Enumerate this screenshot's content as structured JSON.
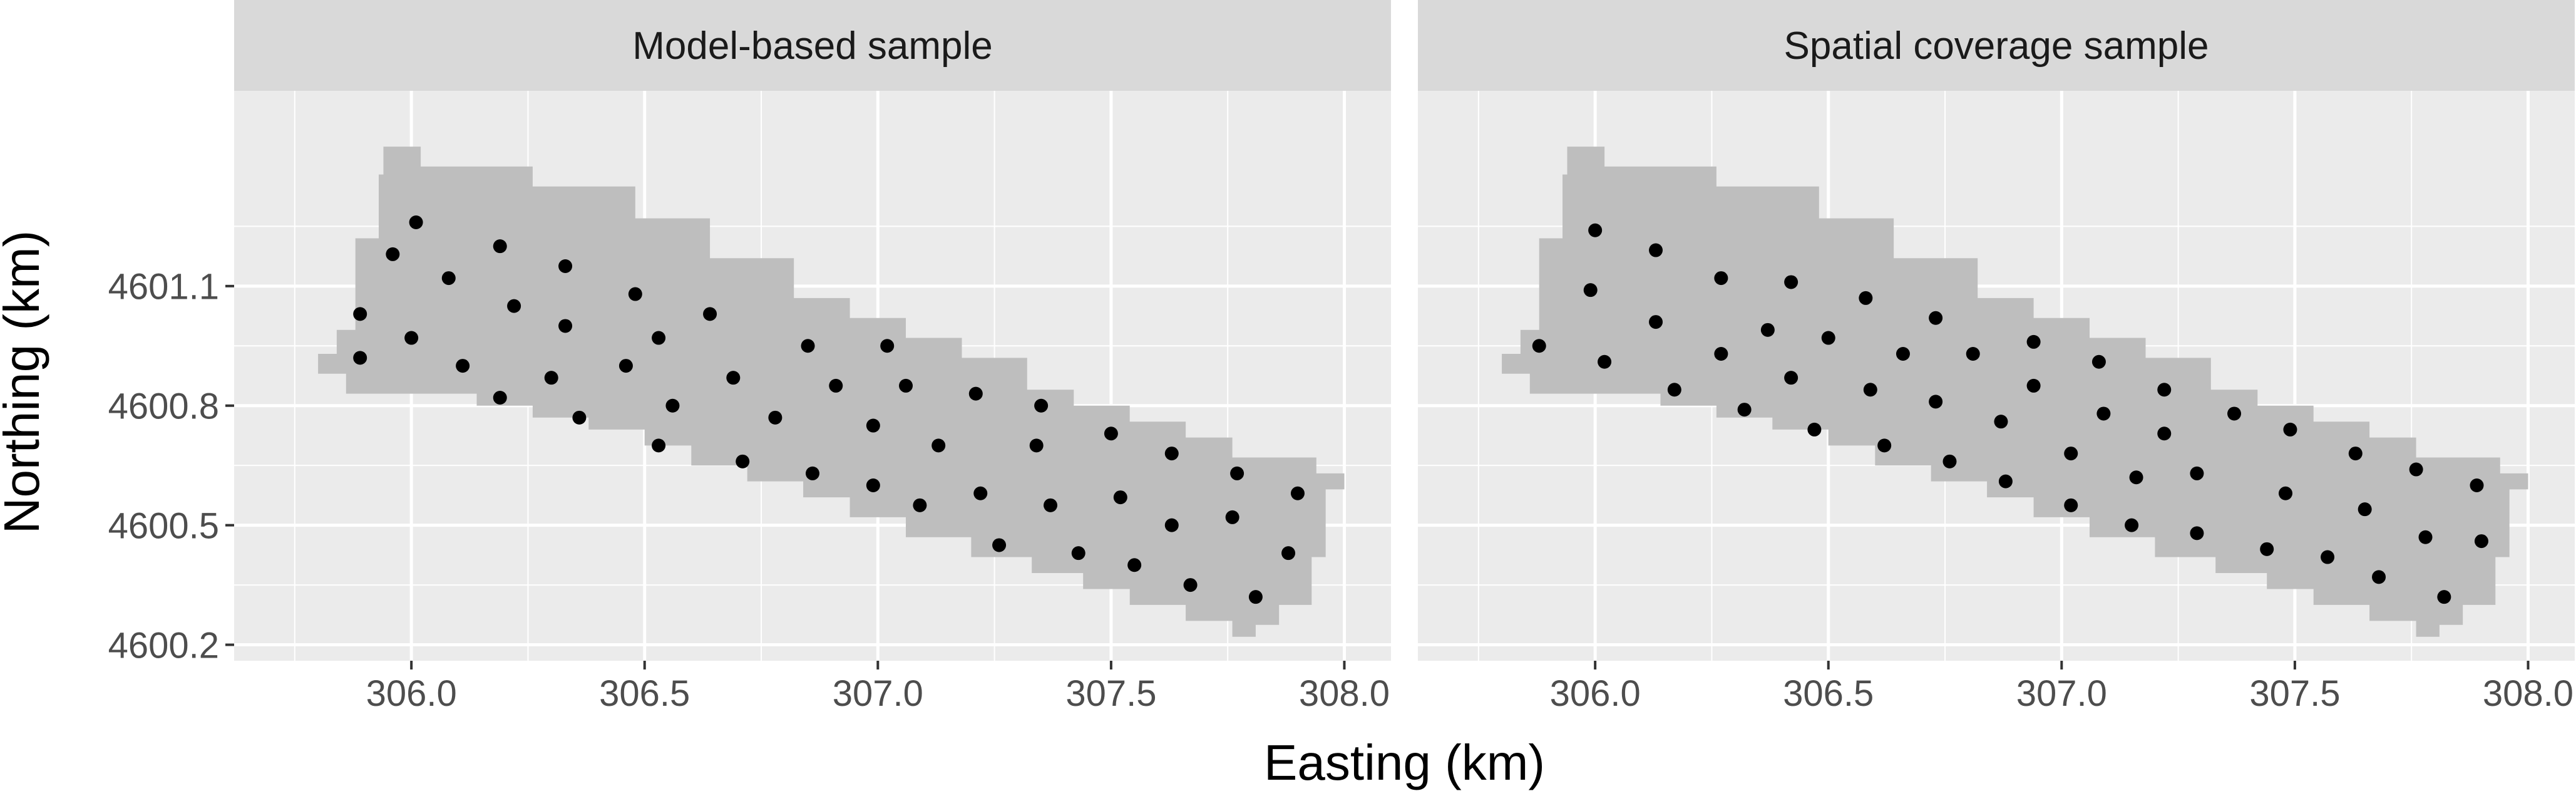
{
  "chart_data": {
    "type": "scatter",
    "xlabel": "Easting (km)",
    "ylabel": "Northing (km)",
    "xlim": [
      305.62,
      308.1
    ],
    "ylim": [
      4600.16,
      4601.59
    ],
    "x_ticks": [
      306.0,
      306.5,
      307.0,
      307.5,
      308.0
    ],
    "y_ticks": [
      4600.2,
      4600.5,
      4600.8,
      4601.1
    ],
    "grid": true,
    "colors": {
      "panel_background": "#ebebeb",
      "strip_background": "#d9d9d9",
      "grid_major": "#ffffff",
      "study_area": "#bebebe",
      "points": "#000000",
      "axis_text": "#4d4d4d"
    },
    "study_area_outline": [
      [
        305.94,
        4601.45
      ],
      [
        306.02,
        4601.45
      ],
      [
        306.02,
        4601.4
      ],
      [
        306.26,
        4601.4
      ],
      [
        306.26,
        4601.35
      ],
      [
        306.48,
        4601.35
      ],
      [
        306.48,
        4601.27
      ],
      [
        306.64,
        4601.27
      ],
      [
        306.64,
        4601.17
      ],
      [
        306.82,
        4601.17
      ],
      [
        306.82,
        4601.07
      ],
      [
        306.94,
        4601.07
      ],
      [
        306.94,
        4601.02
      ],
      [
        307.06,
        4601.02
      ],
      [
        307.06,
        4600.97
      ],
      [
        307.18,
        4600.97
      ],
      [
        307.18,
        4600.92
      ],
      [
        307.32,
        4600.92
      ],
      [
        307.32,
        4600.84
      ],
      [
        307.42,
        4600.84
      ],
      [
        307.42,
        4600.8
      ],
      [
        307.54,
        4600.8
      ],
      [
        307.54,
        4600.76
      ],
      [
        307.66,
        4600.76
      ],
      [
        307.66,
        4600.72
      ],
      [
        307.76,
        4600.72
      ],
      [
        307.76,
        4600.67
      ],
      [
        307.94,
        4600.67
      ],
      [
        307.94,
        4600.63
      ],
      [
        308.0,
        4600.63
      ],
      [
        308.0,
        4600.59
      ],
      [
        307.96,
        4600.59
      ],
      [
        307.96,
        4600.42
      ],
      [
        307.93,
        4600.42
      ],
      [
        307.93,
        4600.3
      ],
      [
        307.86,
        4600.3
      ],
      [
        307.86,
        4600.25
      ],
      [
        307.81,
        4600.25
      ],
      [
        307.81,
        4600.22
      ],
      [
        307.76,
        4600.22
      ],
      [
        307.76,
        4600.26
      ],
      [
        307.66,
        4600.26
      ],
      [
        307.66,
        4600.3
      ],
      [
        307.54,
        4600.3
      ],
      [
        307.54,
        4600.34
      ],
      [
        307.44,
        4600.34
      ],
      [
        307.44,
        4600.38
      ],
      [
        307.33,
        4600.38
      ],
      [
        307.33,
        4600.42
      ],
      [
        307.2,
        4600.42
      ],
      [
        307.2,
        4600.47
      ],
      [
        307.06,
        4600.47
      ],
      [
        307.06,
        4600.52
      ],
      [
        306.94,
        4600.52
      ],
      [
        306.94,
        4600.57
      ],
      [
        306.84,
        4600.57
      ],
      [
        306.84,
        4600.61
      ],
      [
        306.72,
        4600.61
      ],
      [
        306.72,
        4600.65
      ],
      [
        306.6,
        4600.65
      ],
      [
        306.6,
        4600.7
      ],
      [
        306.5,
        4600.7
      ],
      [
        306.5,
        4600.74
      ],
      [
        306.38,
        4600.74
      ],
      [
        306.38,
        4600.77
      ],
      [
        306.26,
        4600.77
      ],
      [
        306.26,
        4600.8
      ],
      [
        306.14,
        4600.8
      ],
      [
        306.14,
        4600.83
      ],
      [
        305.86,
        4600.83
      ],
      [
        305.86,
        4600.88
      ],
      [
        305.8,
        4600.88
      ],
      [
        305.8,
        4600.93
      ],
      [
        305.84,
        4600.93
      ],
      [
        305.84,
        4600.99
      ],
      [
        305.88,
        4600.99
      ],
      [
        305.88,
        4601.22
      ],
      [
        305.93,
        4601.22
      ],
      [
        305.93,
        4601.38
      ],
      [
        305.94,
        4601.38
      ],
      [
        305.94,
        4601.45
      ]
    ],
    "panels": [
      {
        "title": "Model-based sample",
        "points": [
          [
            306.01,
            4601.26
          ],
          [
            305.96,
            4601.18
          ],
          [
            306.08,
            4601.12
          ],
          [
            306.19,
            4601.2
          ],
          [
            306.33,
            4601.15
          ],
          [
            306.22,
            4601.05
          ],
          [
            306.33,
            4601.0
          ],
          [
            306.48,
            4601.08
          ],
          [
            306.64,
            4601.03
          ],
          [
            305.89,
            4601.03
          ],
          [
            305.89,
            4600.92
          ],
          [
            306.0,
            4600.97
          ],
          [
            306.11,
            4600.9
          ],
          [
            306.19,
            4600.82
          ],
          [
            306.3,
            4600.87
          ],
          [
            306.36,
            4600.77
          ],
          [
            306.46,
            4600.9
          ],
          [
            306.53,
            4600.97
          ],
          [
            306.56,
            4600.8
          ],
          [
            306.69,
            4600.87
          ],
          [
            306.78,
            4600.77
          ],
          [
            306.85,
            4600.95
          ],
          [
            306.91,
            4600.85
          ],
          [
            307.02,
            4600.95
          ],
          [
            307.06,
            4600.85
          ],
          [
            307.21,
            4600.83
          ],
          [
            307.35,
            4600.8
          ],
          [
            306.99,
            4600.75
          ],
          [
            307.13,
            4600.7
          ],
          [
            307.34,
            4600.7
          ],
          [
            307.5,
            4600.73
          ],
          [
            307.63,
            4600.68
          ],
          [
            306.53,
            4600.7
          ],
          [
            306.71,
            4600.66
          ],
          [
            306.86,
            4600.63
          ],
          [
            306.99,
            4600.6
          ],
          [
            307.09,
            4600.55
          ],
          [
            307.22,
            4600.58
          ],
          [
            307.37,
            4600.55
          ],
          [
            307.52,
            4600.57
          ],
          [
            307.77,
            4600.63
          ],
          [
            307.9,
            4600.58
          ],
          [
            307.63,
            4600.5
          ],
          [
            307.76,
            4600.52
          ],
          [
            307.26,
            4600.45
          ],
          [
            307.43,
            4600.43
          ],
          [
            307.55,
            4600.4
          ],
          [
            307.67,
            4600.35
          ],
          [
            307.81,
            4600.32
          ],
          [
            307.88,
            4600.43
          ]
        ]
      },
      {
        "title": "Spatial coverage sample",
        "points": [
          [
            306.0,
            4601.24
          ],
          [
            306.13,
            4601.19
          ],
          [
            305.99,
            4601.09
          ],
          [
            306.27,
            4601.12
          ],
          [
            306.42,
            4601.11
          ],
          [
            306.58,
            4601.07
          ],
          [
            306.13,
            4601.01
          ],
          [
            306.37,
            4600.99
          ],
          [
            306.5,
            4600.97
          ],
          [
            306.73,
            4601.02
          ],
          [
            305.88,
            4600.95
          ],
          [
            306.02,
            4600.91
          ],
          [
            306.17,
            4600.84
          ],
          [
            306.27,
            4600.93
          ],
          [
            306.42,
            4600.87
          ],
          [
            306.59,
            4600.84
          ],
          [
            306.66,
            4600.93
          ],
          [
            306.81,
            4600.93
          ],
          [
            306.94,
            4600.96
          ],
          [
            307.08,
            4600.91
          ],
          [
            306.32,
            4600.79
          ],
          [
            306.47,
            4600.74
          ],
          [
            306.62,
            4600.7
          ],
          [
            306.73,
            4600.81
          ],
          [
            306.87,
            4600.76
          ],
          [
            306.94,
            4600.85
          ],
          [
            307.09,
            4600.78
          ],
          [
            307.22,
            4600.84
          ],
          [
            307.37,
            4600.78
          ],
          [
            307.22,
            4600.73
          ],
          [
            307.49,
            4600.74
          ],
          [
            307.63,
            4600.68
          ],
          [
            306.76,
            4600.66
          ],
          [
            306.88,
            4600.61
          ],
          [
            307.02,
            4600.68
          ],
          [
            307.16,
            4600.62
          ],
          [
            307.29,
            4600.63
          ],
          [
            307.48,
            4600.58
          ],
          [
            307.76,
            4600.64
          ],
          [
            307.89,
            4600.6
          ],
          [
            307.02,
            4600.55
          ],
          [
            307.15,
            4600.5
          ],
          [
            307.29,
            4600.48
          ],
          [
            307.44,
            4600.44
          ],
          [
            307.57,
            4600.42
          ],
          [
            307.65,
            4600.54
          ],
          [
            307.78,
            4600.47
          ],
          [
            307.9,
            4600.46
          ],
          [
            307.68,
            4600.37
          ],
          [
            307.82,
            4600.32
          ]
        ]
      }
    ]
  }
}
